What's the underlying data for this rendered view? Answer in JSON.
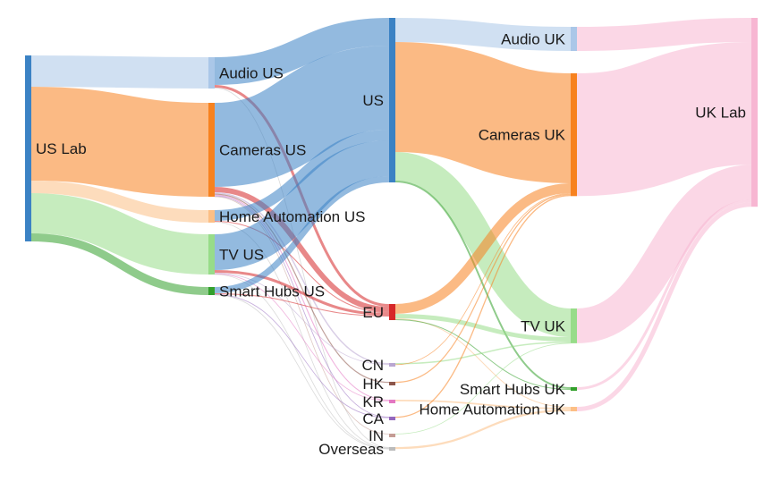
{
  "chart_data": {
    "type": "sankey",
    "title": "",
    "nodes": [
      {
        "id": "us_lab",
        "label": "US Lab",
        "color": "#3b82c4"
      },
      {
        "id": "audio_us",
        "label": "Audio US",
        "color": "#aac7e8"
      },
      {
        "id": "cameras_us",
        "label": "Cameras US",
        "color": "#f7821f"
      },
      {
        "id": "home_us",
        "label": "Home Automation US",
        "color": "#fcbf85"
      },
      {
        "id": "tv_us",
        "label": "TV US",
        "color": "#97dc89"
      },
      {
        "id": "hubs_us",
        "label": "Smart Hubs US",
        "color": "#33a02c"
      },
      {
        "id": "us",
        "label": "US",
        "color": "#3b82c4"
      },
      {
        "id": "eu",
        "label": "EU",
        "color": "#d62728"
      },
      {
        "id": "cn",
        "label": "CN",
        "color": "#b9a6d1"
      },
      {
        "id": "hk",
        "label": "HK",
        "color": "#8c564b"
      },
      {
        "id": "kr",
        "label": "KR",
        "color": "#e377c2"
      },
      {
        "id": "ca",
        "label": "CA",
        "color": "#9467bd"
      },
      {
        "id": "in",
        "label": "IN",
        "color": "#c49c94"
      },
      {
        "id": "overseas",
        "label": "Overseas",
        "color": "#bbbbbb"
      },
      {
        "id": "audio_uk",
        "label": "Audio UK",
        "color": "#aac7e8"
      },
      {
        "id": "cameras_uk",
        "label": "Cameras UK",
        "color": "#f7821f"
      },
      {
        "id": "tv_uk",
        "label": "TV UK",
        "color": "#97dc89"
      },
      {
        "id": "hubs_uk",
        "label": "Smart Hubs UK",
        "color": "#33a02c"
      },
      {
        "id": "home_uk",
        "label": "Home Automation UK",
        "color": "#fcbf85"
      },
      {
        "id": "uk_lab",
        "label": "UK Lab",
        "color": "#f7b6d2"
      }
    ],
    "links": [
      {
        "source": "us_lab",
        "target": "audio_us",
        "value": 35,
        "color": "#aac7e8"
      },
      {
        "source": "us_lab",
        "target": "cameras_us",
        "value": 105,
        "color": "#f7821f"
      },
      {
        "source": "us_lab",
        "target": "home_us",
        "value": 14,
        "color": "#fcbf85"
      },
      {
        "source": "us_lab",
        "target": "tv_us",
        "value": 45,
        "color": "#97dc89"
      },
      {
        "source": "us_lab",
        "target": "hubs_us",
        "value": 9,
        "color": "#33a02c"
      },
      {
        "source": "audio_us",
        "target": "us",
        "value": 31,
        "color": "#3b82c4"
      },
      {
        "source": "audio_us",
        "target": "eu",
        "value": 3,
        "color": "#d62728"
      },
      {
        "source": "audio_us",
        "target": "overseas",
        "value": 0.6,
        "color": "#bbbbbb"
      },
      {
        "source": "cameras_us",
        "target": "us",
        "value": 94,
        "color": "#3b82c4"
      },
      {
        "source": "cameras_us",
        "target": "eu",
        "value": 6,
        "color": "#d62728"
      },
      {
        "source": "cameras_us",
        "target": "cn",
        "value": 1.5,
        "color": "#b9a6d1"
      },
      {
        "source": "cameras_us",
        "target": "hk",
        "value": 1.2,
        "color": "#8c564b"
      },
      {
        "source": "cameras_us",
        "target": "kr",
        "value": 1.1,
        "color": "#e377c2"
      },
      {
        "source": "cameras_us",
        "target": "ca",
        "value": 0.8,
        "color": "#9467bd"
      },
      {
        "source": "cameras_us",
        "target": "in",
        "value": 0.4,
        "color": "#c49c94"
      },
      {
        "source": "home_us",
        "target": "us",
        "value": 12,
        "color": "#3b82c4"
      },
      {
        "source": "home_us",
        "target": "eu",
        "value": 1,
        "color": "#d62728"
      },
      {
        "source": "home_us",
        "target": "overseas",
        "value": 0.6,
        "color": "#bbbbbb"
      },
      {
        "source": "tv_us",
        "target": "us",
        "value": 40,
        "color": "#3b82c4"
      },
      {
        "source": "tv_us",
        "target": "eu",
        "value": 3,
        "color": "#d62728"
      },
      {
        "source": "tv_us",
        "target": "cn",
        "value": 0.8,
        "color": "#b9a6d1"
      },
      {
        "source": "tv_us",
        "target": "kr",
        "value": 0.6,
        "color": "#e377c2"
      },
      {
        "source": "tv_us",
        "target": "overseas",
        "value": 0.6,
        "color": "#bbbbbb"
      },
      {
        "source": "hubs_us",
        "target": "us",
        "value": 7,
        "color": "#3b82c4"
      },
      {
        "source": "hubs_us",
        "target": "eu",
        "value": 1,
        "color": "#d62728"
      },
      {
        "source": "hubs_us",
        "target": "ca",
        "value": 0.5,
        "color": "#9467bd"
      },
      {
        "source": "hubs_us",
        "target": "overseas",
        "value": 0.5,
        "color": "#bbbbbb"
      },
      {
        "source": "us",
        "target": "audio_uk",
        "value": 27,
        "color": "#aac7e8"
      },
      {
        "source": "us",
        "target": "cameras_uk",
        "value": 123,
        "color": "#f7821f"
      },
      {
        "source": "us",
        "target": "tv_uk",
        "value": 32,
        "color": "#97dc89"
      },
      {
        "source": "us",
        "target": "hubs_uk",
        "value": 2,
        "color": "#33a02c"
      },
      {
        "source": "eu",
        "target": "cameras_uk",
        "value": 11,
        "color": "#f7821f"
      },
      {
        "source": "eu",
        "target": "tv_uk",
        "value": 5,
        "color": "#97dc89"
      },
      {
        "source": "eu",
        "target": "home_uk",
        "value": 1,
        "color": "#fcbf85"
      },
      {
        "source": "eu",
        "target": "hubs_uk",
        "value": 1,
        "color": "#33a02c"
      },
      {
        "source": "cn",
        "target": "tv_uk",
        "value": 1.5,
        "color": "#97dc89"
      },
      {
        "source": "cn",
        "target": "cameras_uk",
        "value": 0.8,
        "color": "#f7821f"
      },
      {
        "source": "hk",
        "target": "cameras_uk",
        "value": 1.2,
        "color": "#f7821f"
      },
      {
        "source": "kr",
        "target": "home_uk",
        "value": 1.7,
        "color": "#fcbf85"
      },
      {
        "source": "ca",
        "target": "cameras_uk",
        "value": 1.3,
        "color": "#f7821f"
      },
      {
        "source": "in",
        "target": "tv_uk",
        "value": 0.4,
        "color": "#97dc89"
      },
      {
        "source": "overseas",
        "target": "home_uk",
        "value": 2.3,
        "color": "#fcbf85"
      },
      {
        "source": "audio_uk",
        "target": "uk_lab",
        "value": 27,
        "color": "#f7b6d2"
      },
      {
        "source": "cameras_uk",
        "target": "uk_lab",
        "value": 137.3,
        "color": "#f7b6d2"
      },
      {
        "source": "tv_uk",
        "target": "uk_lab",
        "value": 38.9,
        "color": "#f7b6d2"
      },
      {
        "source": "hubs_uk",
        "target": "uk_lab",
        "value": 3,
        "color": "#f7b6d2"
      },
      {
        "source": "home_uk",
        "target": "uk_lab",
        "value": 5,
        "color": "#f7b6d2"
      }
    ]
  }
}
